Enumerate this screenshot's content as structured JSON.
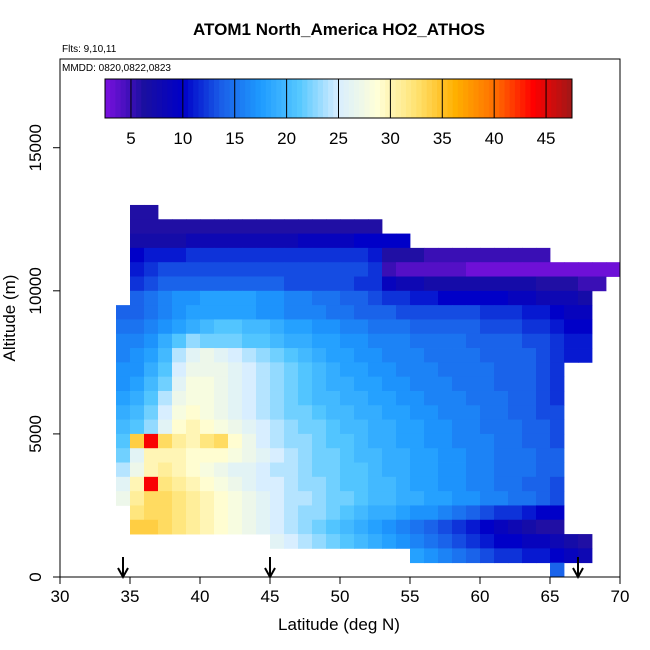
{
  "chart_data": {
    "type": "heatmap",
    "title": "ATOM1 North_America HO2_ATHOS",
    "flights_note": "Flts: 9,10,11",
    "date_note": "MMDD: 0820,0822,0823",
    "xlabel": "Latitude (deg N)",
    "ylabel": "Altitude (m)",
    "xlim": [
      30,
      70
    ],
    "ylim": [
      0,
      18100
    ],
    "x_ticks": [
      30,
      35,
      40,
      45,
      50,
      55,
      60,
      65,
      70
    ],
    "y_ticks": [
      0,
      5000,
      10000,
      15000
    ],
    "colorbar": {
      "ticks": [
        5,
        10,
        15,
        20,
        25,
        30,
        35,
        40,
        45
      ],
      "range": [
        2.5,
        47.5
      ],
      "colors": [
        "#7b10e0",
        "#1a0fa0",
        "#0000c8",
        "#1a5fe8",
        "#1e9bff",
        "#56c8ff",
        "#d8eeff",
        "#ffffd8",
        "#ffe270",
        "#ffb000",
        "#ff7000",
        "#ff0000",
        "#a01818"
      ]
    },
    "arrow_latitudes": [
      34.5,
      45,
      67
    ],
    "cell_size": {
      "lat": 1.0,
      "alt_m": 500
    },
    "cell_rows": [
      {
        "alt": 12750,
        "lat_start": 35,
        "values": [
          6,
          6
        ]
      },
      {
        "alt": 12250,
        "lat_start": 35,
        "values": [
          6,
          6,
          6,
          6,
          6,
          6,
          6,
          6,
          6,
          6,
          6,
          6,
          6,
          6,
          6,
          6,
          6,
          6
        ]
      },
      {
        "alt": 11750,
        "lat_start": 35,
        "values": [
          7,
          7,
          7,
          7,
          8,
          8,
          8,
          8,
          8,
          8,
          8,
          8,
          9,
          9,
          9,
          9,
          10,
          10,
          10,
          10
        ]
      },
      {
        "alt": 11250,
        "lat_start": 35,
        "values": [
          10,
          11,
          11,
          11,
          12,
          12,
          12,
          12,
          12,
          12,
          12,
          12,
          12,
          12,
          12,
          12,
          12,
          11,
          6,
          6,
          6,
          5,
          5,
          5,
          5,
          5,
          5,
          5,
          5,
          5
        ]
      },
      {
        "alt": 10750,
        "lat_start": 35,
        "values": [
          11,
          12,
          13,
          13,
          13,
          13,
          13,
          13,
          13,
          13,
          13,
          13,
          13,
          13,
          13,
          13,
          13,
          12,
          5,
          4,
          4,
          4,
          4,
          4,
          3,
          3,
          3,
          3,
          3,
          3,
          3,
          3,
          3,
          3,
          3
        ]
      },
      {
        "alt": 10250,
        "lat_start": 35,
        "values": [
          12,
          13,
          14,
          14,
          14,
          14,
          14,
          14,
          14,
          14,
          14,
          13,
          13,
          13,
          13,
          13,
          12,
          12,
          9,
          8,
          8,
          7,
          7,
          7,
          7,
          7,
          7,
          7,
          7,
          6,
          6,
          6,
          5,
          5
        ]
      },
      {
        "alt": 9750,
        "lat_start": 35,
        "values": [
          14,
          15,
          16,
          17,
          17,
          18,
          18,
          18,
          18,
          17,
          17,
          16,
          16,
          15,
          15,
          14,
          14,
          13,
          12,
          12,
          11,
          11,
          10,
          10,
          10,
          10,
          10,
          9,
          9,
          8,
          8,
          8,
          7
        ]
      },
      {
        "alt": 9250,
        "lat_start": 34,
        "values": [
          14,
          14,
          15,
          16,
          17,
          18,
          18,
          18,
          18,
          18,
          17,
          17,
          16,
          16,
          16,
          15,
          15,
          14,
          14,
          14,
          13,
          13,
          13,
          13,
          13,
          13,
          12,
          12,
          12,
          11,
          11,
          10,
          9,
          9
        ]
      },
      {
        "alt": 8750,
        "lat_start": 34,
        "values": [
          15,
          15,
          16,
          17,
          18,
          19,
          20,
          21,
          21,
          20,
          20,
          19,
          18,
          18,
          17,
          17,
          16,
          16,
          15,
          15,
          15,
          14,
          14,
          14,
          14,
          14,
          13,
          13,
          13,
          12,
          12,
          11,
          10,
          10
        ]
      },
      {
        "alt": 8250,
        "lat_start": 34,
        "values": [
          16,
          16,
          17,
          19,
          21,
          23,
          22,
          22,
          22,
          21,
          21,
          20,
          19,
          19,
          18,
          18,
          17,
          17,
          16,
          16,
          16,
          15,
          15,
          15,
          15,
          14,
          14,
          14,
          14,
          13,
          13,
          12,
          11,
          11
        ]
      },
      {
        "alt": 7750,
        "lat_start": 34,
        "values": [
          16,
          17,
          18,
          20,
          24,
          26,
          27,
          26,
          25,
          24,
          23,
          22,
          21,
          20,
          19,
          18,
          18,
          17,
          17,
          16,
          16,
          16,
          15,
          15,
          15,
          15,
          14,
          14,
          14,
          14,
          13,
          12,
          11,
          11
        ]
      },
      {
        "alt": 7250,
        "lat_start": 34,
        "values": [
          17,
          17,
          19,
          21,
          25,
          27,
          27,
          27,
          26,
          25,
          24,
          23,
          22,
          21,
          20,
          19,
          18,
          18,
          17,
          17,
          16,
          16,
          16,
          15,
          15,
          15,
          15,
          14,
          14,
          14,
          13,
          12
        ]
      },
      {
        "alt": 6750,
        "lat_start": 34,
        "values": [
          17,
          18,
          20,
          22,
          26,
          28,
          28,
          27,
          26,
          25,
          24,
          23,
          22,
          21,
          20,
          19,
          19,
          18,
          18,
          17,
          17,
          16,
          16,
          16,
          15,
          15,
          15,
          14,
          14,
          14,
          13,
          12
        ]
      },
      {
        "alt": 6250,
        "lat_start": 34,
        "values": [
          18,
          19,
          21,
          24,
          27,
          28,
          28,
          27,
          26,
          25,
          24,
          23,
          22,
          21,
          20,
          20,
          19,
          19,
          18,
          18,
          17,
          17,
          16,
          16,
          16,
          15,
          15,
          15,
          14,
          14,
          13,
          12
        ]
      },
      {
        "alt": 5750,
        "lat_start": 34,
        "values": [
          19,
          20,
          22,
          25,
          28,
          29,
          28,
          27,
          26,
          25,
          24,
          23,
          22,
          22,
          21,
          20,
          20,
          19,
          19,
          18,
          18,
          17,
          17,
          16,
          16,
          16,
          15,
          15,
          14,
          14,
          13,
          13
        ]
      },
      {
        "alt": 5250,
        "lat_start": 34,
        "values": [
          20,
          21,
          23,
          26,
          29,
          30,
          29,
          28,
          27,
          26,
          25,
          24,
          23,
          22,
          22,
          21,
          20,
          20,
          19,
          19,
          18,
          18,
          17,
          17,
          16,
          16,
          15,
          15,
          15,
          14,
          14,
          13
        ]
      },
      {
        "alt": 4750,
        "lat_start": 34,
        "values": [
          21,
          34,
          44,
          33,
          31,
          30,
          32,
          33,
          29,
          27,
          25,
          24,
          23,
          23,
          22,
          21,
          21,
          20,
          19,
          19,
          18,
          18,
          17,
          17,
          16,
          16,
          16,
          15,
          15,
          14,
          14,
          13
        ]
      },
      {
        "alt": 4250,
        "lat_start": 34,
        "values": [
          22,
          26,
          30,
          30,
          30,
          29,
          29,
          29,
          28,
          27,
          26,
          25,
          24,
          23,
          22,
          22,
          21,
          20,
          20,
          19,
          19,
          18,
          18,
          17,
          17,
          16,
          16,
          15,
          15,
          15,
          14,
          14
        ]
      },
      {
        "alt": 3750,
        "lat_start": 34,
        "values": [
          24,
          27,
          30,
          31,
          30,
          29,
          28,
          27,
          26,
          26,
          25,
          24,
          24,
          23,
          22,
          22,
          21,
          21,
          20,
          19,
          19,
          18,
          18,
          17,
          17,
          16,
          16,
          15,
          15,
          15,
          14,
          14
        ]
      },
      {
        "alt": 3250,
        "lat_start": 34,
        "values": [
          26,
          30,
          44,
          32,
          31,
          30,
          29,
          28,
          27,
          26,
          25,
          25,
          24,
          23,
          23,
          22,
          21,
          21,
          20,
          20,
          19,
          18,
          18,
          17,
          17,
          16,
          16,
          15,
          15,
          14,
          14,
          13
        ]
      },
      {
        "alt": 2750,
        "lat_start": 34,
        "values": [
          27,
          31,
          33,
          33,
          32,
          31,
          30,
          29,
          28,
          27,
          26,
          25,
          24,
          24,
          23,
          22,
          22,
          21,
          20,
          20,
          19,
          19,
          18,
          18,
          17,
          17,
          16,
          16,
          15,
          15,
          14,
          13
        ]
      },
      {
        "alt": 2250,
        "lat_start": 35,
        "values": [
          32,
          33,
          33,
          32,
          31,
          30,
          29,
          28,
          27,
          26,
          25,
          24,
          23,
          23,
          22,
          21,
          20,
          19,
          19,
          18,
          17,
          17,
          16,
          15,
          14,
          13,
          12,
          12,
          11,
          10,
          10
        ]
      },
      {
        "alt": 1750,
        "lat_start": 35,
        "values": [
          34,
          34,
          33,
          32,
          31,
          30,
          29,
          28,
          27,
          26,
          25,
          24,
          23,
          22,
          21,
          20,
          19,
          18,
          17,
          16,
          15,
          14,
          13,
          12,
          11,
          10,
          9,
          8,
          7,
          6,
          6
        ]
      },
      {
        "alt": 1250,
        "lat_start": 45,
        "values": [
          26,
          25,
          24,
          23,
          22,
          21,
          20,
          19,
          18,
          17,
          16,
          15,
          14,
          13,
          12,
          11,
          10,
          10,
          9,
          9,
          8,
          7,
          6
        ]
      },
      {
        "alt": 750,
        "lat_start": 55,
        "values": [
          18,
          17,
          16,
          15,
          14,
          13,
          12,
          12,
          11,
          11,
          10,
          9,
          8
        ]
      },
      {
        "alt": 250,
        "lat_start": 65,
        "values": [
          14
        ]
      }
    ]
  }
}
